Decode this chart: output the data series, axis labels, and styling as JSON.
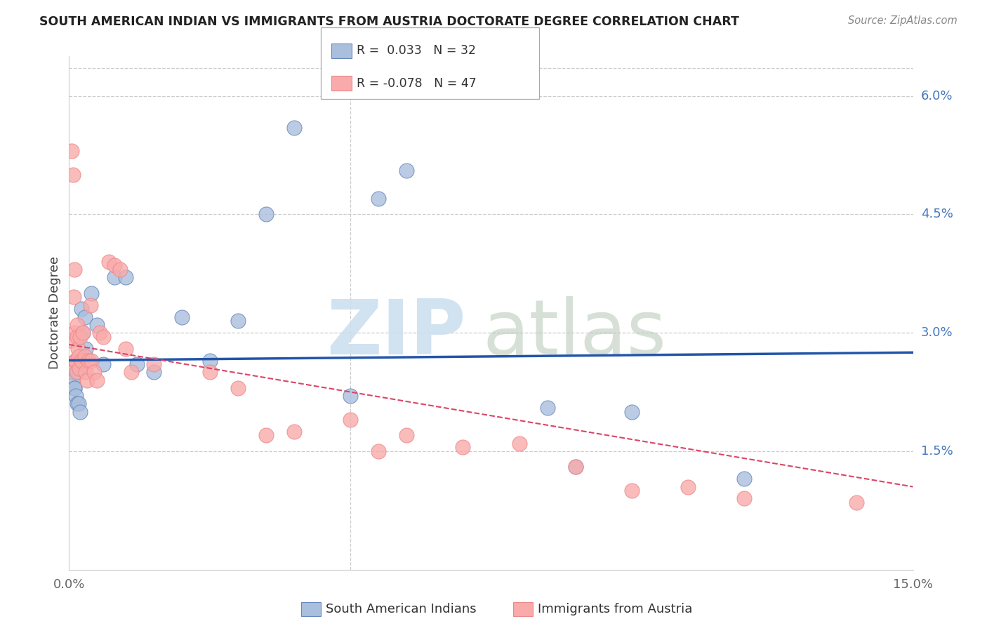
{
  "title": "SOUTH AMERICAN INDIAN VS IMMIGRANTS FROM AUSTRIA DOCTORATE DEGREE CORRELATION CHART",
  "source": "Source: ZipAtlas.com",
  "ylabel": "Doctorate Degree",
  "legend_blue_r_val": "0.033",
  "legend_blue_n_val": "32",
  "legend_pink_r_val": "-0.078",
  "legend_pink_n_val": "47",
  "legend_label_blue": "South American Indians",
  "legend_label_pink": "Immigrants from Austria",
  "blue_fill": "#AABFDD",
  "pink_fill": "#F9AAAA",
  "blue_edge": "#6688BB",
  "pink_edge": "#EE8888",
  "blue_line_color": "#2255AA",
  "pink_line_color": "#DD4466",
  "ytick_vals": [
    1.5,
    3.0,
    4.5,
    6.0
  ],
  "ytick_labels": [
    "1.5%",
    "3.0%",
    "4.5%",
    "6.0%"
  ],
  "xmin": 0.0,
  "xmax": 15.0,
  "ymin": 0.0,
  "ymax": 6.5,
  "blue_points_x": [
    0.05,
    0.07,
    0.09,
    0.1,
    0.12,
    0.14,
    0.15,
    0.17,
    0.2,
    0.22,
    0.25,
    0.28,
    0.3,
    0.4,
    0.5,
    0.6,
    0.8,
    1.0,
    1.2,
    1.5,
    2.0,
    2.5,
    3.0,
    3.5,
    4.0,
    5.0,
    5.5,
    6.0,
    8.5,
    9.0,
    10.0,
    12.0
  ],
  "blue_points_y": [
    2.5,
    2.4,
    2.3,
    2.3,
    2.2,
    2.1,
    2.5,
    2.1,
    2.0,
    3.3,
    3.0,
    3.2,
    2.8,
    3.5,
    3.1,
    2.6,
    3.7,
    3.7,
    2.6,
    2.5,
    3.2,
    2.65,
    3.15,
    4.5,
    5.6,
    2.2,
    4.7,
    5.05,
    2.05,
    1.3,
    2.0,
    1.15
  ],
  "pink_points_x": [
    0.03,
    0.05,
    0.07,
    0.08,
    0.09,
    0.1,
    0.11,
    0.12,
    0.13,
    0.14,
    0.15,
    0.16,
    0.17,
    0.18,
    0.2,
    0.22,
    0.25,
    0.28,
    0.3,
    0.32,
    0.35,
    0.38,
    0.4,
    0.45,
    0.5,
    0.55,
    0.6,
    0.7,
    0.8,
    0.9,
    1.0,
    1.1,
    1.5,
    2.5,
    3.0,
    3.5,
    4.0,
    5.0,
    5.5,
    6.0,
    7.0,
    8.0,
    9.0,
    10.0,
    11.0,
    12.0,
    14.0
  ],
  "pink_points_y": [
    2.9,
    5.3,
    5.0,
    3.45,
    3.8,
    3.0,
    2.65,
    2.65,
    2.5,
    3.1,
    2.95,
    2.8,
    2.7,
    2.55,
    2.95,
    2.65,
    3.0,
    2.7,
    2.5,
    2.4,
    2.65,
    3.35,
    2.65,
    2.5,
    2.4,
    3.0,
    2.95,
    3.9,
    3.85,
    3.8,
    2.8,
    2.5,
    2.6,
    2.5,
    2.3,
    1.7,
    1.75,
    1.9,
    1.5,
    1.7,
    1.55,
    1.6,
    1.3,
    1.0,
    1.05,
    0.9,
    0.85
  ]
}
